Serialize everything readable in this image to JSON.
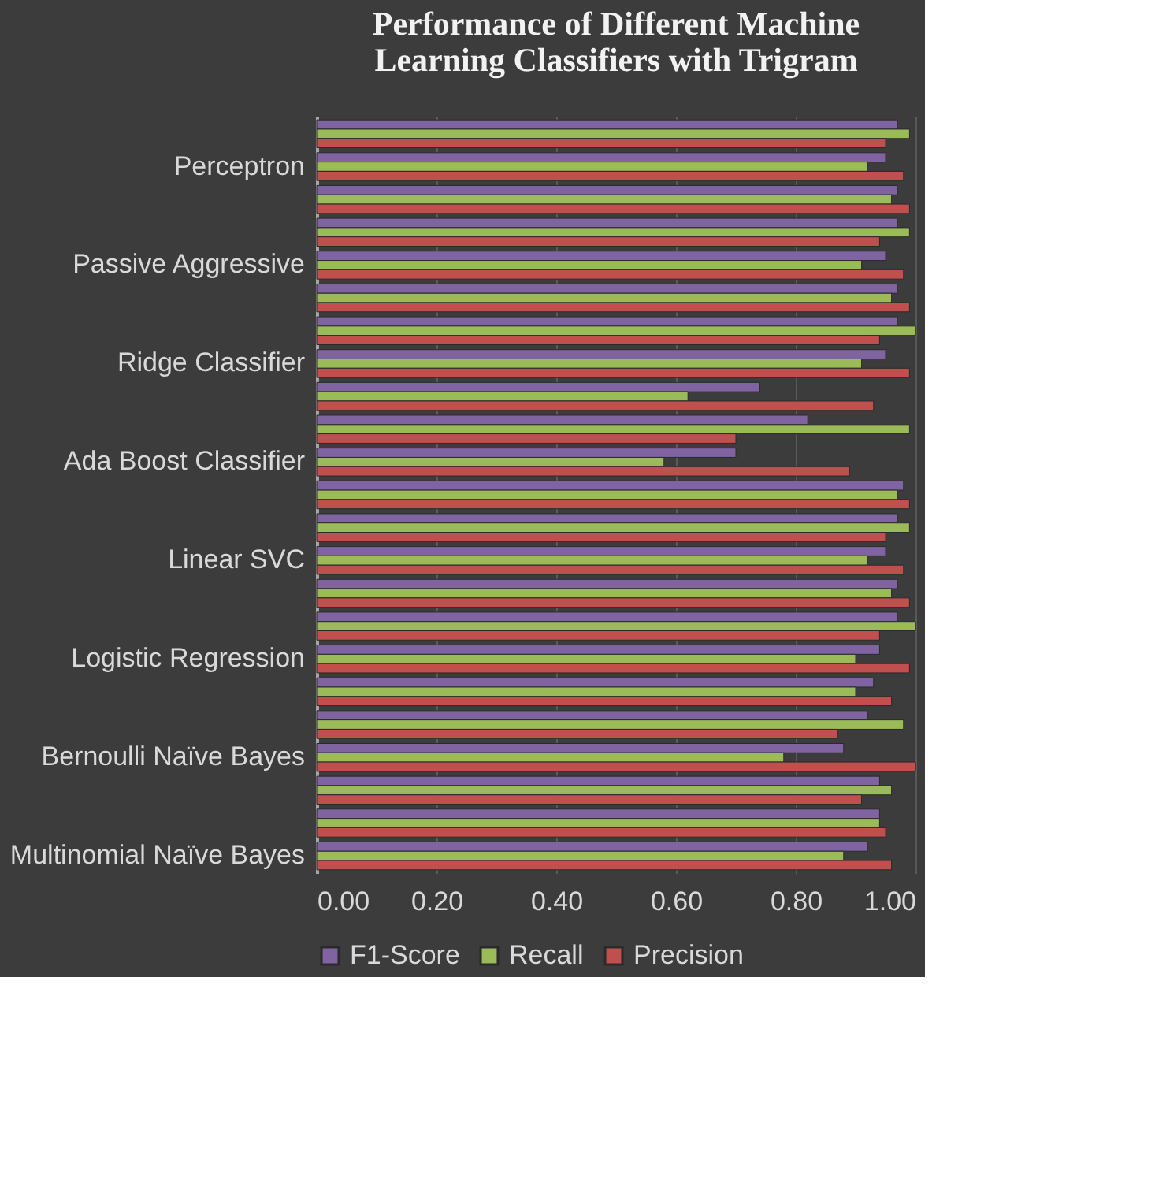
{
  "chart_data": {
    "type": "bar",
    "orientation": "horizontal",
    "title": "Performance of Different Machine\nLearning Classifiers with Trigram",
    "categories": [
      null,
      "Perceptron",
      null,
      null,
      "Passive Aggressive ",
      null,
      null,
      "Ridge Classifier",
      null,
      null,
      "Ada Boost Classifier",
      null,
      null,
      "Linear SVC",
      null,
      null,
      "Logistic Regression",
      null,
      null,
      "Bernoulli Naïve Bayes",
      null,
      null,
      "Multinomial Naïve Bayes"
    ],
    "series": [
      {
        "name": "F1-Score",
        "color": "#8064a2",
        "values": [
          0.97,
          0.95,
          0.97,
          0.97,
          0.95,
          0.97,
          0.97,
          0.95,
          0.74,
          0.82,
          0.7,
          0.98,
          0.97,
          0.95,
          0.97,
          0.97,
          0.94,
          0.93,
          0.92,
          0.88,
          0.94,
          0.94,
          0.92
        ]
      },
      {
        "name": "Recall",
        "color": "#9bbb59",
        "values": [
          0.99,
          0.92,
          0.96,
          0.99,
          0.91,
          0.96,
          1.0,
          0.91,
          0.62,
          0.99,
          0.58,
          0.97,
          0.99,
          0.92,
          0.96,
          1.0,
          0.9,
          0.9,
          0.98,
          0.78,
          0.96,
          0.94,
          0.88
        ]
      },
      {
        "name": "Precision",
        "color": "#c0504d",
        "values": [
          0.95,
          0.98,
          0.99,
          0.94,
          0.98,
          0.99,
          0.94,
          0.99,
          0.93,
          0.7,
          0.89,
          0.99,
          0.95,
          0.98,
          0.99,
          0.94,
          0.99,
          0.96,
          0.87,
          1.0,
          0.91,
          0.95,
          0.96
        ]
      }
    ],
    "xlim": [
      0,
      1
    ],
    "xticks": [
      {
        "value": 0,
        "label": "0.00"
      },
      {
        "value": 0.2,
        "label": "0.20"
      },
      {
        "value": 0.4,
        "label": "0.40"
      },
      {
        "value": 0.6,
        "label": "0.60"
      },
      {
        "value": 0.8,
        "label": "0.80"
      },
      {
        "value": 1,
        "label": "1.00"
      }
    ],
    "grid": "x",
    "legend": "bottom"
  }
}
